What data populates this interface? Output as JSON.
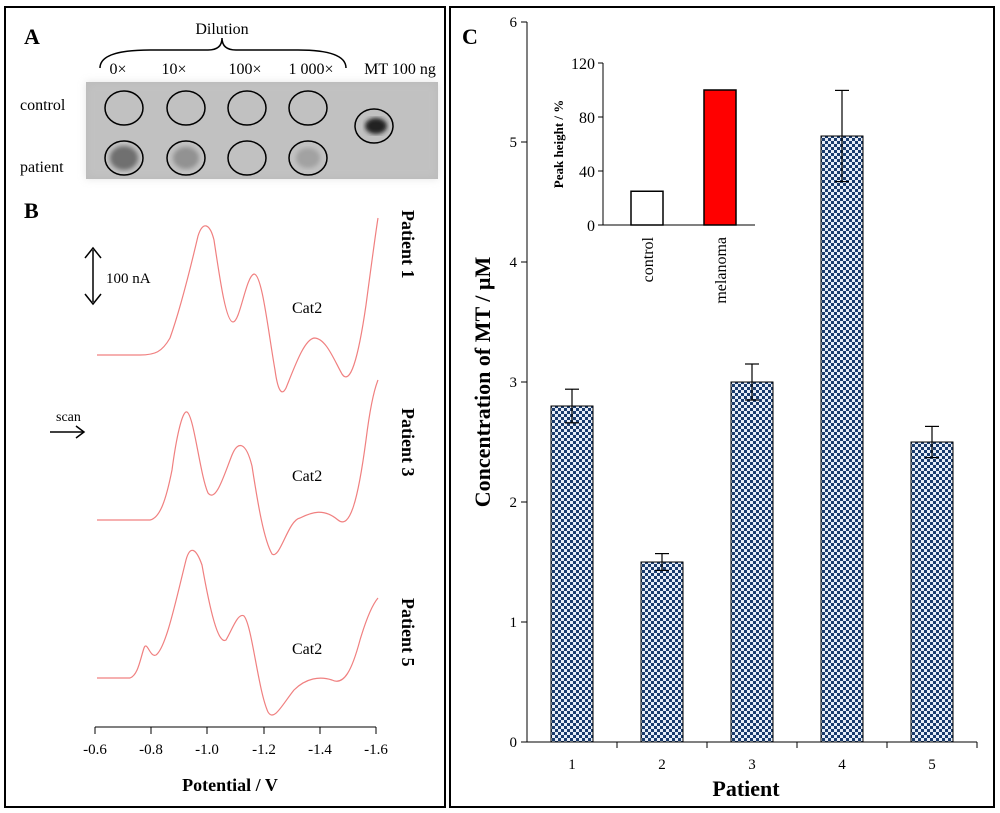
{
  "panel_a": {
    "label": "A",
    "dilution_title": "Dilution",
    "dilutions": [
      "0×",
      "10×",
      "100×",
      "1 000×"
    ],
    "standard_label": "MT 100 ng",
    "rows": [
      "control",
      "patient"
    ]
  },
  "panel_b": {
    "label": "B",
    "scale_label": "100 nA",
    "scan_label": "scan",
    "peak_label": "Cat2",
    "traces": [
      {
        "name": "Patient 1"
      },
      {
        "name": "Patient 3"
      },
      {
        "name": "Patient 5"
      }
    ],
    "xlabel": "Potential / V",
    "xticks": [
      "-0.6",
      "-0.8",
      "-1.0",
      "-1.2",
      "-1.4",
      "-1.6"
    ],
    "trace_color": "#f08080"
  },
  "panel_c": {
    "label": "C",
    "bar_fill": "#1a3c6e",
    "bar_light": "#e8eef8"
  },
  "chart_data": [
    {
      "type": "bar",
      "title": "",
      "categories": [
        "1",
        "2",
        "3",
        "4",
        "5"
      ],
      "values": [
        2.8,
        1.5,
        3.0,
        5.05,
        2.5
      ],
      "errors": [
        0.14,
        0.07,
        0.15,
        0.38,
        0.13
      ],
      "xlabel": "Patient",
      "ylabel": "Concentration of MT / µM",
      "ylim": [
        0,
        6
      ],
      "yticks": [
        "0",
        "1",
        "2",
        "3",
        "4",
        "5",
        "6"
      ],
      "grid": false
    },
    {
      "type": "bar",
      "title": "",
      "categories": [
        "control",
        "melanoma"
      ],
      "values": [
        25,
        100
      ],
      "colors": [
        "#ffffff",
        "#ff0000"
      ],
      "xlabel": "",
      "ylabel": "Peak height / %",
      "ylim": [
        0,
        120
      ],
      "yticks": [
        "0",
        "40",
        "80",
        "120"
      ],
      "grid": false
    }
  ]
}
